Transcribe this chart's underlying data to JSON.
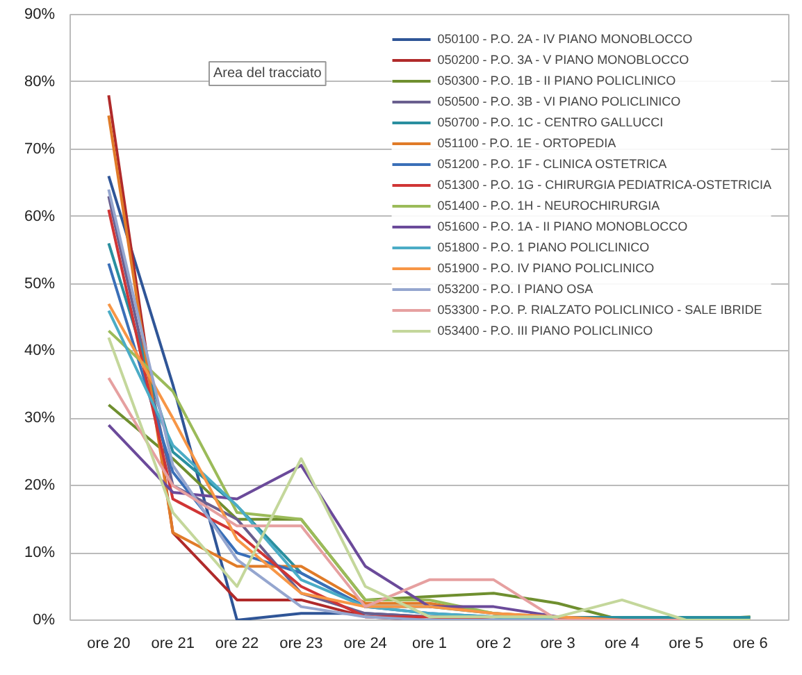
{
  "chart_data": {
    "type": "line",
    "categories": [
      "ore 20",
      "ore 21",
      "ore 22",
      "ore 23",
      "ore 24",
      "ore 1",
      "ore 2",
      "ore 3",
      "ore 4",
      "ore 5",
      "ore 6"
    ],
    "ylim": [
      0,
      90
    ],
    "yticks": [
      {
        "value": 0,
        "label": "0%"
      },
      {
        "value": 10,
        "label": "10%"
      },
      {
        "value": 20,
        "label": "20%"
      },
      {
        "value": 30,
        "label": "30%"
      },
      {
        "value": 40,
        "label": "40%"
      },
      {
        "value": 50,
        "label": "50%"
      },
      {
        "value": 60,
        "label": "60%"
      },
      {
        "value": 70,
        "label": "70%"
      },
      {
        "value": 80,
        "label": "80%"
      },
      {
        "value": 90,
        "label": "90%"
      }
    ],
    "grid": "y",
    "legend": "top right",
    "annotations": [
      "Area del tracciato"
    ],
    "series": [
      {
        "name": "050100 - P.O. 2A - IV PIANO MONOBLOCCO",
        "color": "#2f5597",
        "values": [
          66,
          35,
          0,
          1,
          1,
          0.5,
          0.5,
          0,
          0,
          null,
          null
        ]
      },
      {
        "name": "050200 - P.O. 3A - V PIANO MONOBLOCCO",
        "color": "#b02a2a",
        "values": [
          78,
          13,
          3,
          3,
          0.5,
          0,
          0,
          0,
          0,
          0,
          0
        ]
      },
      {
        "name": "050300 - P.O. 1B - II PIANO POLICLINICO",
        "color": "#6f8f2f",
        "values": [
          32,
          24,
          15,
          15,
          3,
          3.5,
          4,
          2.5,
          0,
          0,
          0.5
        ]
      },
      {
        "name": "050500 - P.O. 3B - VI PIANO POLICLINICO",
        "color": "#6a5f8f",
        "values": [
          63,
          20,
          15,
          4,
          1,
          0.5,
          0,
          0,
          0,
          0,
          0
        ]
      },
      {
        "name": "050700 - P.O. 1C - CENTRO GALLUCCI",
        "color": "#2a8f9f",
        "values": [
          56,
          25,
          17,
          7,
          2,
          2,
          1,
          0.4,
          0.4,
          0.4,
          0.4
        ]
      },
      {
        "name": "051100 - P.O. 1E - ORTOPEDIA",
        "color": "#e07b28",
        "values": [
          75,
          13,
          8,
          8,
          2.5,
          2.5,
          1,
          0.5,
          0,
          0,
          0
        ]
      },
      {
        "name": "051200 - P.O. 1F - CLINICA OSTETRICA",
        "color": "#3a6fb8",
        "values": [
          53,
          22,
          10,
          7,
          2,
          1,
          0.5,
          0,
          0,
          null,
          null
        ]
      },
      {
        "name": "051300 - P.O. 1G - CHIRURGIA PEDIATRICA-OSTETRICIA",
        "color": "#d03535",
        "values": [
          61,
          18,
          13,
          5,
          0.5,
          0.5,
          0,
          0,
          0,
          0,
          0
        ]
      },
      {
        "name": "051400 - P.O. 1H - NEUROCHIRURGIA",
        "color": "#9bbb59",
        "values": [
          43,
          34,
          16,
          15,
          3,
          3,
          1,
          0,
          0,
          0,
          0
        ]
      },
      {
        "name": "051600 - P.O. 1A - II PIANO MONOBLOCCO",
        "color": "#6b4a9a",
        "values": [
          29,
          19,
          18,
          23,
          8,
          2,
          2,
          0.5,
          0,
          0,
          0
        ]
      },
      {
        "name": "051800 - P.O. 1 PIANO POLICLINICO",
        "color": "#4bacc6",
        "values": [
          46,
          26,
          17,
          6,
          2,
          1,
          0.5,
          0,
          0,
          null,
          null
        ]
      },
      {
        "name": "051900 - P.O. IV PIANO POLICLINICO",
        "color": "#f79646",
        "values": [
          47,
          30,
          12,
          4,
          2,
          2,
          1,
          0.5,
          0,
          0,
          0
        ]
      },
      {
        "name": "053200 - P.O. I PIANO OSA",
        "color": "#95a6cf",
        "values": [
          64,
          23,
          9,
          2,
          0.5,
          0,
          0,
          0,
          0,
          0,
          0
        ]
      },
      {
        "name": "053300 - P.O. P. RIALZATO POLICLINICO - SALE IBRIDE",
        "color": "#e6a0a0",
        "values": [
          36,
          20,
          14,
          14,
          2,
          6,
          6,
          0,
          0,
          0,
          0
        ]
      },
      {
        "name": "053400 - P.O. III PIANO POLICLINICO",
        "color": "#c4d79b",
        "values": [
          42,
          16,
          5,
          24,
          5,
          0.5,
          0.5,
          0.5,
          3,
          0,
          0
        ]
      }
    ]
  }
}
